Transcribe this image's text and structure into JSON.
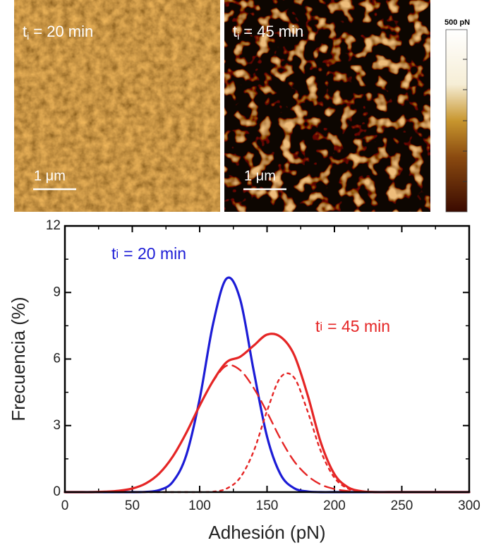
{
  "panels": [
    {
      "label": {
        "base": "t",
        "sub": "i",
        "rest": "= 20 min"
      },
      "scale_bar": "1 μm"
    },
    {
      "label": {
        "base": "t",
        "sub": "i",
        "rest": "= 45 min"
      },
      "scale_bar": "1 μm"
    }
  ],
  "colorbar": {
    "label": "500 pN"
  },
  "chart_data": {
    "type": "line",
    "x_label": "Adhesión (pN)",
    "y_label": "Frecuencia (%)",
    "annotations": [
      {
        "base": "t",
        "sub": "i",
        "rest": "= 20 min",
        "color": "#1c1cd6"
      },
      {
        "base": "t",
        "sub": "i",
        "rest": "= 45 min",
        "color": "#e52525"
      }
    ],
    "x": [
      0,
      10,
      20,
      30,
      40,
      50,
      60,
      70,
      80,
      90,
      100,
      110,
      120,
      130,
      140,
      150,
      160,
      170,
      180,
      190,
      200,
      210,
      220,
      230,
      240,
      250,
      260,
      270,
      280,
      290,
      300
    ],
    "series": [
      {
        "color": "#1c1cd6",
        "line_style": "solid",
        "values": [
          0,
          0,
          0,
          0,
          0,
          0,
          0.01,
          0.09,
          0.46,
          1.65,
          4.2,
          7.6,
          9.63,
          8.7,
          5.5,
          2.5,
          0.8,
          0.18,
          0.03,
          0,
          0,
          0,
          0,
          0,
          0,
          0,
          0,
          0,
          0,
          0,
          0
        ]
      },
      {
        "color": "#e52525",
        "line_style": "solid",
        "values": [
          0,
          0,
          0,
          0.02,
          0.06,
          0.16,
          0.39,
          0.84,
          1.6,
          2.66,
          3.9,
          5.02,
          5.86,
          6.1,
          6.6,
          7.1,
          7.0,
          6.2,
          4.4,
          2.22,
          0.81,
          0.22,
          0.04,
          0,
          0,
          0,
          0,
          0,
          0,
          0,
          0
        ]
      },
      {
        "color": "#e52525",
        "line_style": "dashed",
        "values": [
          0,
          0,
          0,
          0.02,
          0.06,
          0.16,
          0.39,
          0.84,
          1.6,
          2.66,
          3.9,
          5.0,
          5.7,
          5.5,
          4.7,
          3.6,
          2.4,
          1.4,
          0.74,
          0.34,
          0.14,
          0.05,
          0.02,
          0,
          0,
          0,
          0,
          0,
          0,
          0,
          0
        ]
      },
      {
        "color": "#e52525",
        "line_style": "dotted",
        "values": [
          0,
          0,
          0,
          0,
          0,
          0,
          0,
          0,
          0,
          0,
          0,
          0.02,
          0.16,
          0.65,
          1.83,
          3.66,
          5.17,
          5.17,
          3.66,
          1.83,
          0.65,
          0.16,
          0.02,
          0,
          0,
          0,
          0,
          0,
          0,
          0,
          0
        ]
      }
    ],
    "xlim": [
      0,
      300
    ],
    "xticks": [
      0,
      50,
      100,
      150,
      200,
      250,
      300
    ],
    "ylim": [
      0,
      12
    ],
    "yticks": [
      0,
      3,
      6,
      9,
      12
    ]
  }
}
